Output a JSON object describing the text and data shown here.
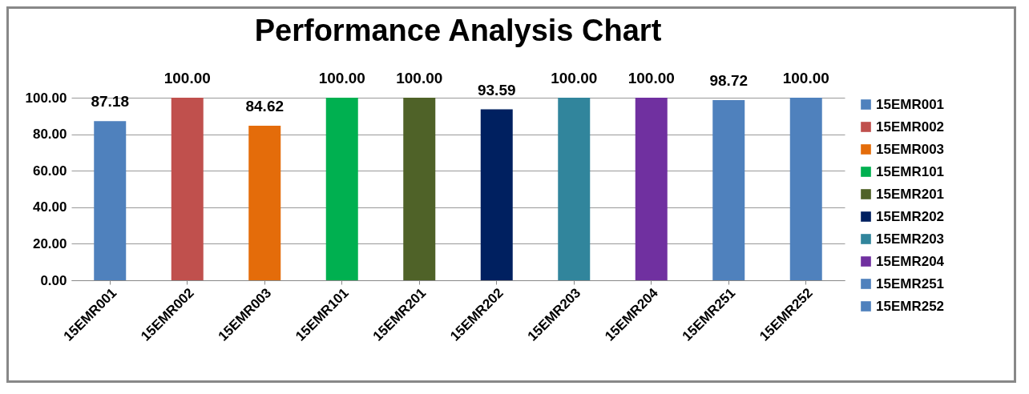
{
  "chart_data": {
    "type": "bar",
    "title": "Performance Analysis Chart",
    "categories": [
      "15EMR001",
      "15EMR002",
      "15EMR003",
      "15EMR101",
      "15EMR201",
      "15EMR202",
      "15EMR203",
      "15EMR204",
      "15EMR251",
      "15EMR252"
    ],
    "series": [
      {
        "name": "15EMR001",
        "color": "#4f81bd",
        "values": [
          87.18,
          null,
          null,
          null,
          null,
          null,
          null,
          null,
          null,
          null
        ],
        "value_labels": [
          "87.18",
          null,
          null,
          null,
          null,
          null,
          null,
          null,
          null,
          null
        ]
      },
      {
        "name": "15EMR002",
        "color": "#c0504d",
        "values": [
          null,
          100,
          null,
          null,
          null,
          null,
          null,
          null,
          null,
          null
        ],
        "value_labels": [
          null,
          "100.00",
          null,
          null,
          null,
          null,
          null,
          null,
          null,
          null
        ]
      },
      {
        "name": "15EMR003",
        "color": "#e46c0a",
        "values": [
          null,
          null,
          84.62,
          null,
          null,
          null,
          null,
          null,
          null,
          null
        ],
        "value_labels": [
          null,
          null,
          "84.62",
          null,
          null,
          null,
          null,
          null,
          null,
          null
        ]
      },
      {
        "name": "15EMR101",
        "color": "#00b050",
        "values": [
          null,
          null,
          null,
          100,
          null,
          null,
          null,
          null,
          null,
          null
        ],
        "value_labels": [
          null,
          null,
          null,
          "100.00",
          null,
          null,
          null,
          null,
          null,
          null
        ]
      },
      {
        "name": "15EMR201",
        "color": "#4f6228",
        "values": [
          null,
          null,
          null,
          null,
          100,
          null,
          null,
          null,
          null,
          null
        ],
        "value_labels": [
          null,
          null,
          null,
          null,
          "100.00",
          null,
          null,
          null,
          null,
          null
        ]
      },
      {
        "name": "15EMR202",
        "color": "#002060",
        "values": [
          null,
          null,
          null,
          null,
          null,
          93.59,
          null,
          null,
          null,
          null
        ],
        "value_labels": [
          null,
          null,
          null,
          null,
          null,
          "93.59",
          null,
          null,
          null,
          null
        ]
      },
      {
        "name": "15EMR203",
        "color": "#31859c",
        "values": [
          null,
          null,
          null,
          null,
          null,
          null,
          100,
          null,
          null,
          null
        ],
        "value_labels": [
          null,
          null,
          null,
          null,
          null,
          null,
          "100.00",
          null,
          null,
          null
        ]
      },
      {
        "name": "15EMR204",
        "color": "#7030a0",
        "values": [
          null,
          null,
          null,
          null,
          null,
          null,
          null,
          100,
          null,
          null
        ],
        "value_labels": [
          null,
          null,
          null,
          null,
          null,
          null,
          null,
          "100.00",
          null,
          null
        ]
      },
      {
        "name": "15EMR251",
        "color": "#4f81bd",
        "values": [
          null,
          null,
          null,
          null,
          null,
          null,
          null,
          null,
          98.72,
          null
        ],
        "value_labels": [
          null,
          null,
          null,
          null,
          null,
          null,
          null,
          null,
          "98.72",
          null
        ]
      },
      {
        "name": "15EMR252",
        "color": "#4f81bd",
        "values": [
          null,
          null,
          null,
          null,
          null,
          null,
          null,
          null,
          null,
          100
        ],
        "value_labels": [
          null,
          null,
          null,
          null,
          null,
          null,
          null,
          null,
          null,
          "100.00"
        ]
      }
    ],
    "ylim": [
      0,
      100
    ],
    "yticks": [
      {
        "value": 0,
        "label": "0.00"
      },
      {
        "value": 20,
        "label": "20.00"
      },
      {
        "value": 40,
        "label": "40.00"
      },
      {
        "value": 60,
        "label": "60.00"
      },
      {
        "value": 80,
        "label": "80.00"
      },
      {
        "value": 100,
        "label": "100.00"
      }
    ],
    "grid": "y",
    "legend": "right"
  }
}
